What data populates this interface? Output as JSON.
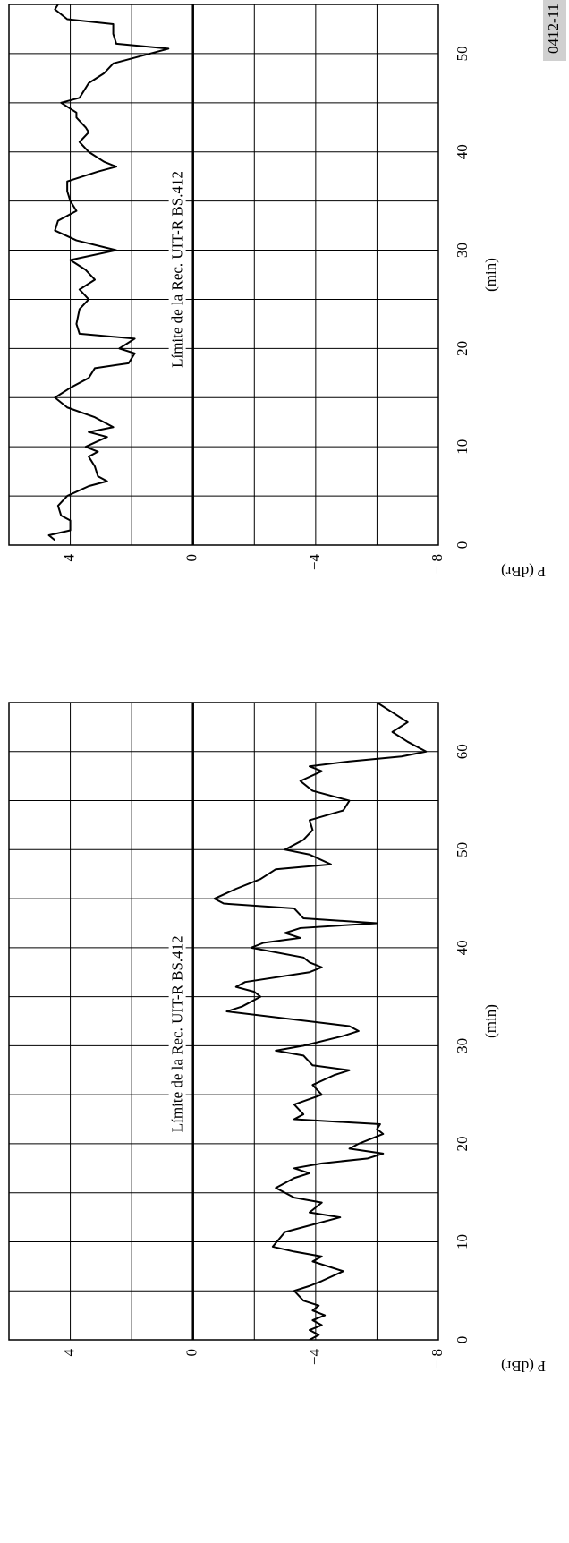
{
  "figure_id": "0412-11",
  "chart_data": [
    {
      "type": "line",
      "xlabel": "(min)",
      "ylabel": "P (dBr)",
      "reference_line": {
        "value": 0,
        "label": "Límite de la Rec. UIT-R BS.412"
      },
      "xlim": [
        0,
        65
      ],
      "xticks": [
        0,
        10,
        20,
        30,
        40,
        50,
        60
      ],
      "xminor": [
        5,
        15,
        25,
        35,
        45,
        55
      ],
      "ylim": [
        -8,
        6
      ],
      "yticks": [
        {
          "value": -8,
          "label": "− 8"
        },
        {
          "value": -4,
          "label": "−4"
        },
        0,
        4
      ],
      "yminor": [
        -6,
        -2,
        2
      ],
      "grid": true,
      "x": [
        0,
        0.5,
        1,
        1.5,
        2,
        2.5,
        3,
        3.5,
        4,
        5,
        5.5,
        6,
        7,
        8,
        8.5,
        9,
        9.5,
        11,
        12.5,
        13,
        14,
        14.5,
        15.5,
        16.5,
        17,
        17.5,
        18,
        18.5,
        19,
        19.5,
        20,
        21,
        21.5,
        22,
        22.5,
        23,
        24,
        25,
        26,
        27,
        27.5,
        28,
        29,
        29.5,
        30,
        31,
        31.5,
        32,
        33.5,
        34,
        35,
        35.5,
        36,
        36.5,
        37.5,
        38,
        38.5,
        39,
        40,
        40.5,
        41,
        41.5,
        42,
        42.5,
        43,
        44,
        44.5,
        45,
        46,
        47,
        48,
        48.5,
        49.5,
        50,
        51,
        52,
        53,
        54,
        55,
        56,
        57,
        58,
        58.5,
        59,
        59.5,
        60,
        61,
        62,
        63,
        64,
        65
      ],
      "series": [
        {
          "color": "#000000",
          "values": [
            -3.8,
            -4.1,
            -3.8,
            -4.2,
            -3.9,
            -4.3,
            -3.9,
            -4.1,
            -3.6,
            -3.3,
            -3.8,
            -4.2,
            -4.9,
            -3.9,
            -4.2,
            -3.3,
            -2.6,
            -3.0,
            -4.8,
            -3.8,
            -4.2,
            -3.3,
            -2.7,
            -3.3,
            -3.8,
            -3.3,
            -4.2,
            -5.7,
            -6.2,
            -5.1,
            -5.4,
            -6.2,
            -6.0,
            -6.1,
            -3.3,
            -3.6,
            -3.3,
            -4.2,
            -3.9,
            -4.6,
            -5.1,
            -3.9,
            -3.6,
            -2.7,
            -3.6,
            -4.9,
            -5.4,
            -5.1,
            -1.1,
            -1.6,
            -2.2,
            -2.0,
            -1.4,
            -1.7,
            -3.8,
            -4.2,
            -3.8,
            -3.6,
            -1.9,
            -2.3,
            -3.5,
            -3.0,
            -3.5,
            -6.0,
            -3.6,
            -3.3,
            -1.0,
            -0.7,
            -1.4,
            -2.2,
            -2.7,
            -4.5,
            -3.8,
            -3.0,
            -3.6,
            -3.9,
            -3.8,
            -4.9,
            -5.1,
            -3.9,
            -3.5,
            -4.2,
            -3.8,
            -5.1,
            -6.8,
            -7.6,
            -7.0,
            -6.5,
            -7.0,
            -6.5,
            -6.0
          ]
        }
      ]
    },
    {
      "type": "line",
      "xlabel": "(min)",
      "ylabel": "P (dBr)",
      "reference_line": {
        "value": 0,
        "label": "Límite de la Rec. UIT-R BS.412"
      },
      "xlim": [
        0,
        55
      ],
      "xticks": [
        0,
        10,
        20,
        30,
        40,
        50
      ],
      "xminor": [
        5,
        15,
        25,
        35,
        45
      ],
      "ylim": [
        -8,
        6
      ],
      "yticks": [
        {
          "value": -8,
          "label": "− 8"
        },
        {
          "value": -4,
          "label": "−4"
        },
        0,
        4
      ],
      "yminor": [
        -6,
        -2,
        2
      ],
      "grid": true,
      "x": [
        0.5,
        1,
        1.5,
        2.5,
        3,
        4,
        5,
        6,
        6.5,
        7,
        8,
        9,
        9.5,
        10,
        11,
        11.5,
        12,
        13,
        14,
        15,
        16,
        17,
        18,
        18.5,
        19.5,
        20,
        21,
        21.5,
        22.5,
        24,
        25,
        26,
        27,
        28,
        29,
        30,
        31,
        32,
        33,
        34,
        35,
        36,
        37,
        38,
        38.5,
        39,
        40,
        41,
        42,
        42.5,
        43.5,
        44,
        45,
        45.5,
        46.5,
        47,
        48,
        49,
        50.5,
        51,
        52,
        53,
        53.5,
        54.5,
        55
      ],
      "series": [
        {
          "color": "#000000",
          "values": [
            4.5,
            4.7,
            4.0,
            4.0,
            4.3,
            4.4,
            4.1,
            3.4,
            2.8,
            3.1,
            3.2,
            3.4,
            3.1,
            3.5,
            2.8,
            3.4,
            2.6,
            3.2,
            4.1,
            4.5,
            4.0,
            3.4,
            3.2,
            2.1,
            1.9,
            2.4,
            1.9,
            3.7,
            3.8,
            3.7,
            3.4,
            3.7,
            3.2,
            3.5,
            4.0,
            2.5,
            3.8,
            4.5,
            4.4,
            3.8,
            4.0,
            4.1,
            4.1,
            3.1,
            2.5,
            2.9,
            3.4,
            3.7,
            3.4,
            3.5,
            3.8,
            3.8,
            4.3,
            3.7,
            3.5,
            3.4,
            2.9,
            2.6,
            0.8,
            2.5,
            2.6,
            2.6,
            4.1,
            4.5,
            4.4
          ]
        }
      ]
    }
  ]
}
